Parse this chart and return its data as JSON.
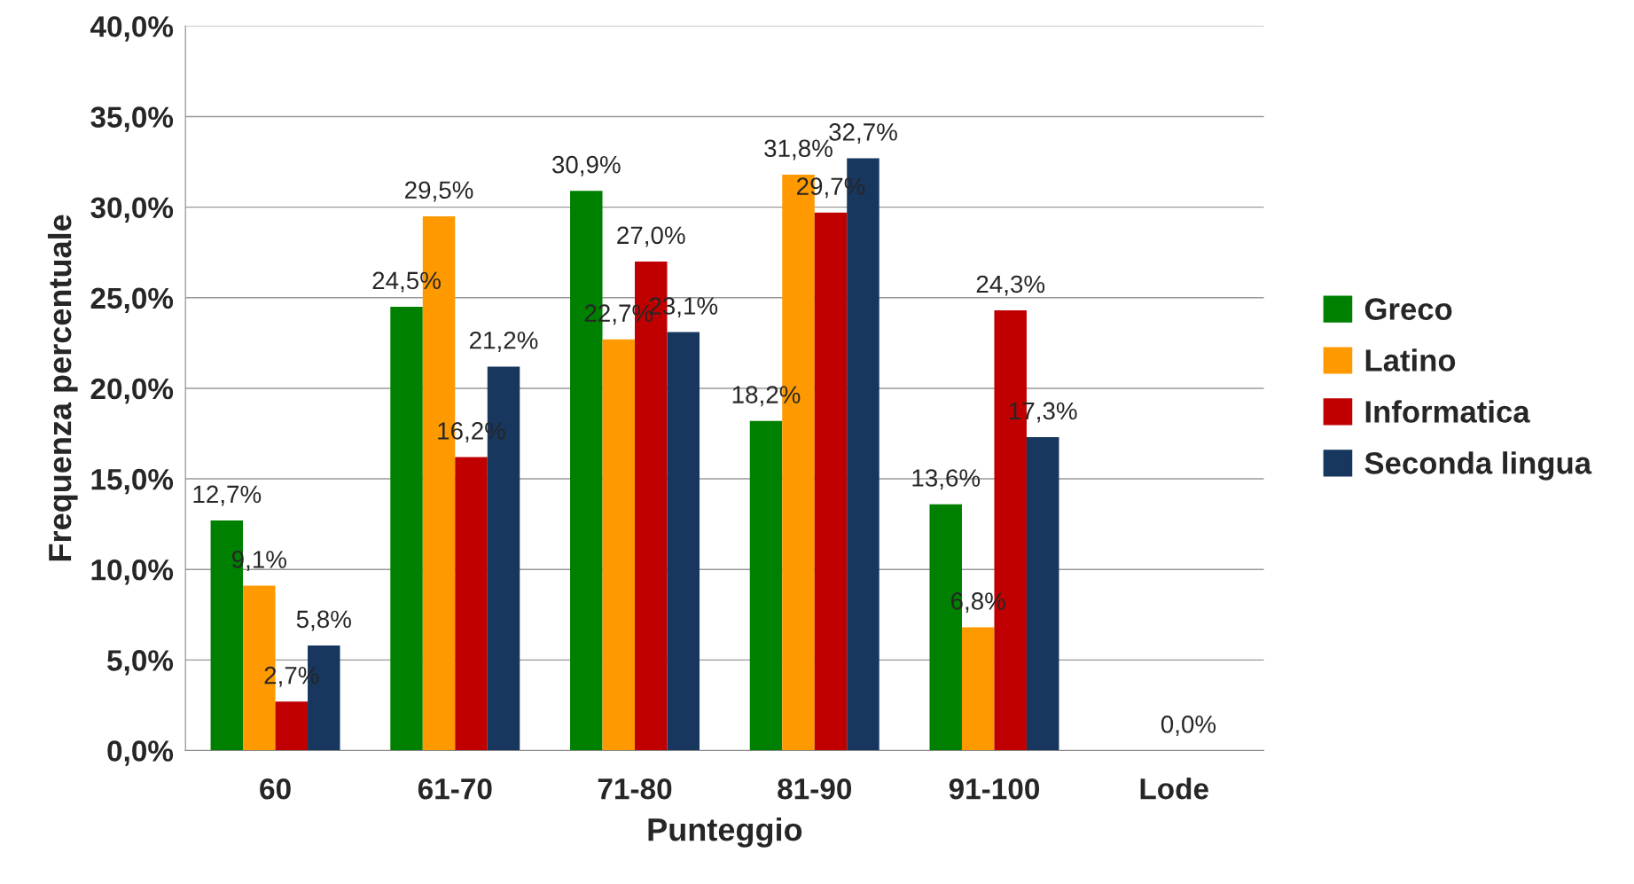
{
  "chart_data": {
    "type": "bar",
    "xlabel": "Punteggio",
    "ylabel": "Frequenza percentuale",
    "categories": [
      "60",
      "61-70",
      "71-80",
      "81-90",
      "91-100",
      "Lode"
    ],
    "series": [
      {
        "name": "Greco",
        "color": "#008000",
        "values": [
          12.7,
          24.5,
          30.9,
          18.2,
          13.6,
          null
        ],
        "value_labels": [
          "12,7%",
          "24,5%",
          "30,9%",
          "18,2%",
          "13,6%",
          null
        ]
      },
      {
        "name": "Latino",
        "color": "#ff9900",
        "values": [
          9.1,
          29.5,
          22.7,
          31.8,
          6.8,
          null
        ],
        "value_labels": [
          "9,1%",
          "29,5%",
          "22,7%",
          "31,8%",
          "6,8%",
          null
        ]
      },
      {
        "name": "Informatica",
        "color": "#c00000",
        "values": [
          2.7,
          16.2,
          27.0,
          29.7,
          24.3,
          null
        ],
        "value_labels": [
          "2,7%",
          "16,2%",
          "27,0%",
          "29,7%",
          "24,3%",
          null
        ]
      },
      {
        "name": "Seconda lingua",
        "color": "#17375e",
        "values": [
          5.8,
          21.2,
          23.1,
          32.7,
          17.3,
          null
        ],
        "value_labels": [
          "5,8%",
          "21,2%",
          "23,1%",
          "32,7%",
          "17,3%",
          null
        ]
      }
    ],
    "ylim": [
      0,
      40
    ],
    "yticks": [
      {
        "value": 0,
        "label": "0,0%"
      },
      {
        "value": 5,
        "label": "5,0%"
      },
      {
        "value": 10,
        "label": "10,0%"
      },
      {
        "value": 15,
        "label": "15,0%"
      },
      {
        "value": 20,
        "label": "20,0%"
      },
      {
        "value": 25,
        "label": "25,0%"
      },
      {
        "value": 30,
        "label": "30,0%"
      },
      {
        "value": 35,
        "label": "35,0%"
      },
      {
        "value": 40,
        "label": "40,0%"
      }
    ],
    "annotations": [
      "0,0%"
    ],
    "grid": "y",
    "legend": "right"
  }
}
